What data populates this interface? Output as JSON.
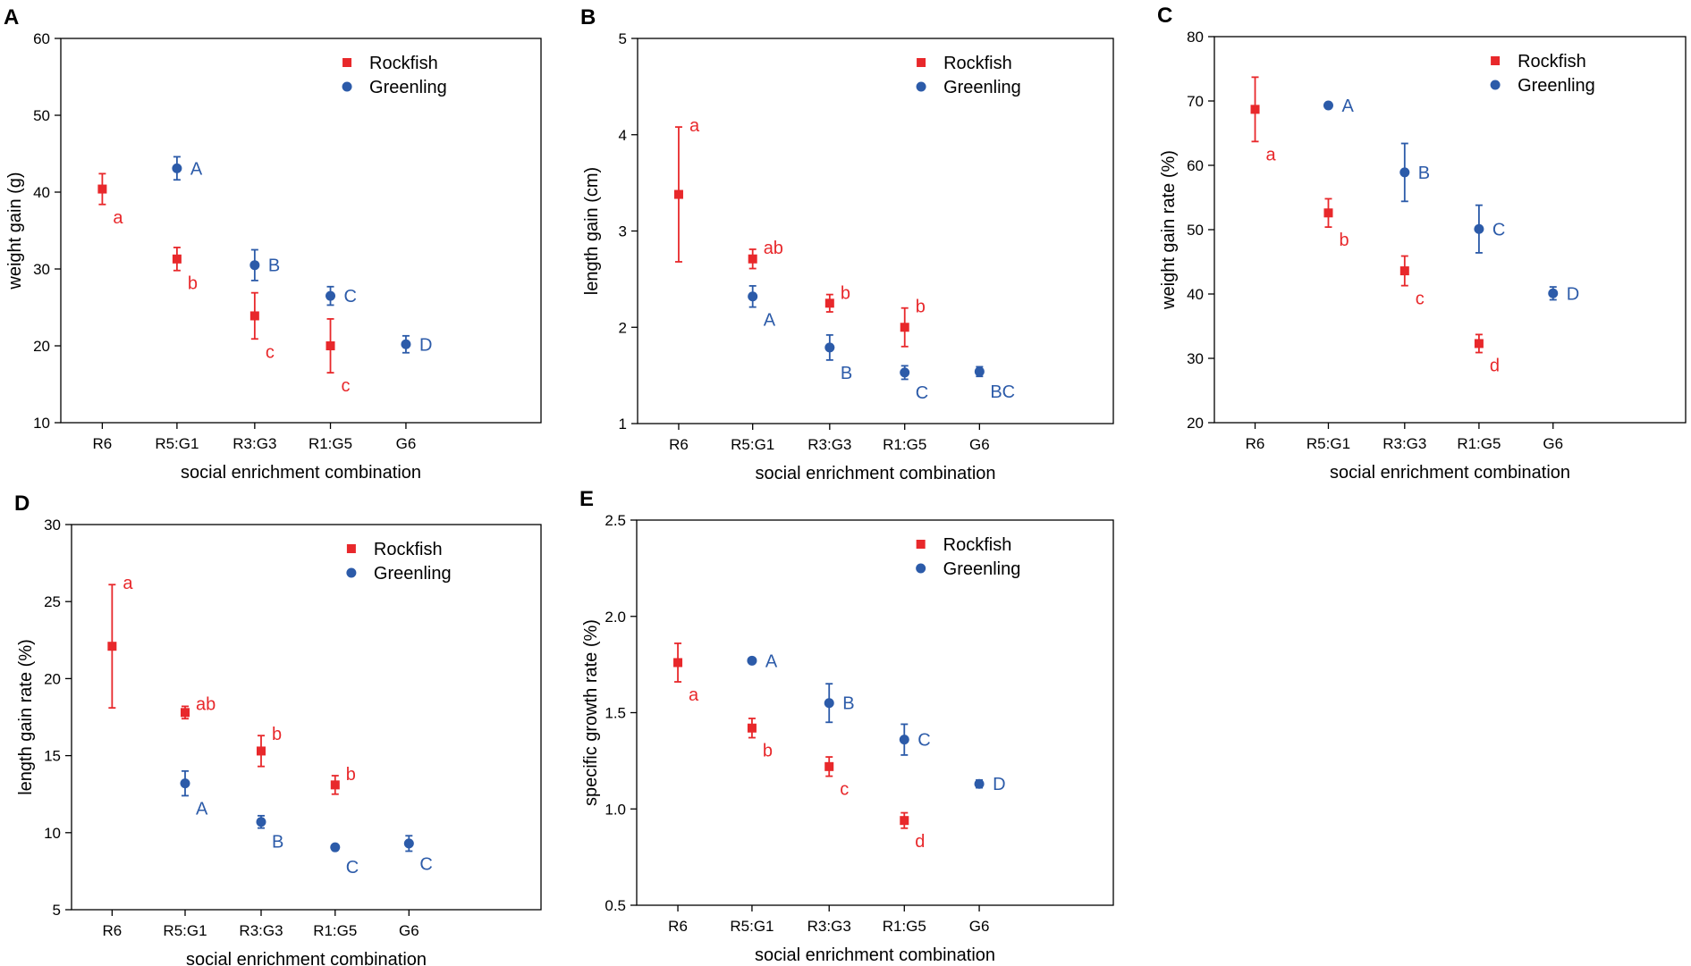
{
  "colors": {
    "rockfish": "#e8282b",
    "greenling": "#2c5ba9",
    "axis": "#000000"
  },
  "chart_data": [
    {
      "type": "scatter",
      "panel": "A",
      "xlabel": "social enrichment combination",
      "ylabel": "weight gain (g)",
      "ylim": [
        10,
        60
      ],
      "yticks": [
        "10",
        "20",
        "30",
        "40",
        "50",
        "60"
      ],
      "categories": [
        "R6",
        "R5:G1",
        "R3:G3",
        "R1:G5",
        "G6"
      ],
      "legend": [
        "Rockfish",
        "Greenling"
      ],
      "series": [
        {
          "name": "Rockfish",
          "points": [
            {
              "cat": 0,
              "y": 40.4,
              "err": 2.0,
              "label": "a",
              "dir": "below"
            },
            {
              "cat": 1,
              "y": 31.3,
              "err": 1.5,
              "label": "b",
              "dir": "below"
            },
            {
              "cat": 2,
              "y": 23.9,
              "err": 3.0,
              "label": "c",
              "dir": "below"
            },
            {
              "cat": 3,
              "y": 20.0,
              "err": 3.5,
              "label": "c",
              "dir": "below"
            }
          ]
        },
        {
          "name": "Greenling",
          "points": [
            {
              "cat": 1,
              "y": 43.1,
              "err": 1.5,
              "label": "A",
              "dir": "right"
            },
            {
              "cat": 2,
              "y": 30.5,
              "err": 2.0,
              "label": "B",
              "dir": "right"
            },
            {
              "cat": 3,
              "y": 26.5,
              "err": 1.2,
              "label": "C",
              "dir": "right"
            },
            {
              "cat": 4,
              "y": 20.2,
              "err": 1.1,
              "label": "D",
              "dir": "right"
            }
          ]
        }
      ]
    },
    {
      "type": "scatter",
      "panel": "B",
      "xlabel": "social enrichment combination",
      "ylabel": "length gain (cm)",
      "ylim": [
        1,
        5
      ],
      "yticks": [
        "1",
        "2",
        "3",
        "4",
        "5"
      ],
      "categories": [
        "R6",
        "R5:G1",
        "R3:G3",
        "R1:G5",
        "G6"
      ],
      "legend": [
        "Rockfish",
        "Greenling"
      ],
      "series": [
        {
          "name": "Rockfish",
          "points": [
            {
              "cat": 0,
              "y": 3.38,
              "err": 0.7,
              "label": "a",
              "dir": "above"
            },
            {
              "cat": 1,
              "y": 2.71,
              "err": 0.1,
              "label": "ab",
              "dir": "above"
            },
            {
              "cat": 2,
              "y": 2.25,
              "err": 0.09,
              "label": "b",
              "dir": "above"
            },
            {
              "cat": 3,
              "y": 2.0,
              "err": 0.2,
              "label": "b",
              "dir": "above"
            }
          ]
        },
        {
          "name": "Greenling",
          "points": [
            {
              "cat": 1,
              "y": 2.32,
              "err": 0.11,
              "label": "A",
              "dir": "below"
            },
            {
              "cat": 2,
              "y": 1.79,
              "err": 0.13,
              "label": "B",
              "dir": "below"
            },
            {
              "cat": 3,
              "y": 1.53,
              "err": 0.07,
              "label": "C",
              "dir": "below"
            },
            {
              "cat": 4,
              "y": 1.54,
              "err": 0.05,
              "label": "BC",
              "dir": "below"
            }
          ]
        }
      ]
    },
    {
      "type": "scatter",
      "panel": "C",
      "xlabel": "social enrichment combination",
      "ylabel": "weight gain rate (%)",
      "ylim": [
        20,
        80
      ],
      "yticks": [
        "20",
        "30",
        "40",
        "50",
        "60",
        "70",
        "80"
      ],
      "categories": [
        "R6",
        "R5:G1",
        "R3:G3",
        "R1:G5",
        "G6"
      ],
      "legend": [
        "Rockfish",
        "Greenling"
      ],
      "series": [
        {
          "name": "Rockfish",
          "points": [
            {
              "cat": 0,
              "y": 68.7,
              "err": 5.0,
              "label": "a",
              "dir": "below"
            },
            {
              "cat": 1,
              "y": 52.6,
              "err": 2.2,
              "label": "b",
              "dir": "below"
            },
            {
              "cat": 2,
              "y": 43.6,
              "err": 2.3,
              "label": "c",
              "dir": "below"
            },
            {
              "cat": 3,
              "y": 32.3,
              "err": 1.4,
              "label": "d",
              "dir": "below"
            }
          ]
        },
        {
          "name": "Greenling",
          "points": [
            {
              "cat": 1,
              "y": 69.3,
              "err": 0.3,
              "label": "A",
              "dir": "right"
            },
            {
              "cat": 2,
              "y": 58.9,
              "err": 4.5,
              "label": "B",
              "dir": "right"
            },
            {
              "cat": 3,
              "y": 50.1,
              "err": 3.7,
              "label": "C",
              "dir": "right"
            },
            {
              "cat": 4,
              "y": 40.1,
              "err": 1.0,
              "label": "D",
              "dir": "right"
            }
          ]
        }
      ]
    },
    {
      "type": "scatter",
      "panel": "D",
      "xlabel": "social enrichment combination",
      "ylabel": "length gain rate (%)",
      "ylim": [
        5,
        30
      ],
      "yticks": [
        "5",
        "10",
        "15",
        "20",
        "25",
        "30"
      ],
      "categories": [
        "R6",
        "R5:G1",
        "R3:G3",
        "R1:G5",
        "G6"
      ],
      "legend": [
        "Rockfish",
        "Greenling"
      ],
      "series": [
        {
          "name": "Rockfish",
          "points": [
            {
              "cat": 0,
              "y": 22.1,
              "err": 4.0,
              "label": "a",
              "dir": "above"
            },
            {
              "cat": 1,
              "y": 17.8,
              "err": 0.4,
              "label": "ab",
              "dir": "above"
            },
            {
              "cat": 2,
              "y": 15.3,
              "err": 1.0,
              "label": "b",
              "dir": "above"
            },
            {
              "cat": 3,
              "y": 13.1,
              "err": 0.6,
              "label": "b",
              "dir": "above"
            }
          ]
        },
        {
          "name": "Greenling",
          "points": [
            {
              "cat": 1,
              "y": 13.2,
              "err": 0.8,
              "label": "A",
              "dir": "below"
            },
            {
              "cat": 2,
              "y": 10.7,
              "err": 0.4,
              "label": "B",
              "dir": "below"
            },
            {
              "cat": 3,
              "y": 9.05,
              "err": 0.15,
              "label": "C",
              "dir": "below"
            },
            {
              "cat": 4,
              "y": 9.3,
              "err": 0.5,
              "label": "C",
              "dir": "below"
            }
          ]
        }
      ]
    },
    {
      "type": "scatter",
      "panel": "E",
      "xlabel": "social enrichment combination",
      "ylabel": "specific growth rate (%)",
      "ylim": [
        0.5,
        2.5
      ],
      "yticks": [
        "0.5",
        "1.0",
        "1.5",
        "2.0",
        "2.5"
      ],
      "categories": [
        "R6",
        "R5:G1",
        "R3:G3",
        "R1:G5",
        "G6"
      ],
      "legend": [
        "Rockfish",
        "Greenling"
      ],
      "series": [
        {
          "name": "Rockfish",
          "points": [
            {
              "cat": 0,
              "y": 1.76,
              "err": 0.1,
              "label": "a",
              "dir": "below"
            },
            {
              "cat": 1,
              "y": 1.42,
              "err": 0.05,
              "label": "b",
              "dir": "below"
            },
            {
              "cat": 2,
              "y": 1.22,
              "err": 0.05,
              "label": "c",
              "dir": "below"
            },
            {
              "cat": 3,
              "y": 0.94,
              "err": 0.04,
              "label": "d",
              "dir": "below"
            }
          ]
        },
        {
          "name": "Greenling",
          "points": [
            {
              "cat": 1,
              "y": 1.77,
              "err": 0.01,
              "label": "A",
              "dir": "right"
            },
            {
              "cat": 2,
              "y": 1.55,
              "err": 0.1,
              "label": "B",
              "dir": "right"
            },
            {
              "cat": 3,
              "y": 1.36,
              "err": 0.08,
              "label": "C",
              "dir": "right"
            },
            {
              "cat": 4,
              "y": 1.13,
              "err": 0.02,
              "label": "D",
              "dir": "right"
            }
          ]
        }
      ]
    }
  ]
}
